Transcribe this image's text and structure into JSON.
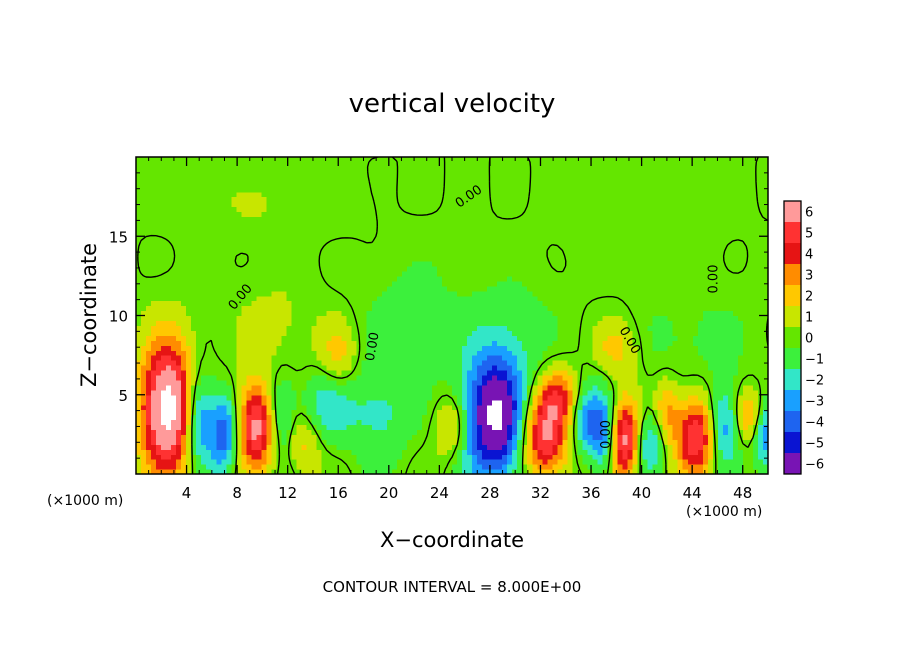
{
  "chart_data": {
    "type": "heatmap",
    "title": "vertical velocity",
    "xlabel": "X−coordinate",
    "ylabel": "Z−coordinate",
    "x_unit_left": "(×1000 m)",
    "x_unit_right": "(×1000 m)",
    "footer": "CONTOUR INTERVAL = 8.000E+00",
    "xlim": [
      0,
      50
    ],
    "ylim": [
      0,
      20
    ],
    "x_ticks": [
      4,
      8,
      12,
      16,
      20,
      24,
      28,
      32,
      36,
      40,
      44,
      48
    ],
    "x_tick_labels": [
      "4",
      "8",
      "12",
      "16",
      "20",
      "24",
      "28",
      "32",
      "36",
      "40",
      "44",
      "48"
    ],
    "y_ticks": [
      5,
      10,
      15
    ],
    "y_tick_labels": [
      "5",
      "10",
      "15"
    ],
    "contour_labels": [
      {
        "text": "0.00",
        "x": 8.5,
        "y": 11,
        "angle": -50
      },
      {
        "text": "0.00",
        "x": 19,
        "y": 8,
        "angle": -80
      },
      {
        "text": "0.00",
        "x": 26.5,
        "y": 17.3,
        "angle": -35
      },
      {
        "text": "0.00",
        "x": 38.8,
        "y": 8.3,
        "angle": 60
      },
      {
        "text": "0.00",
        "x": 46,
        "y": 12.3,
        "angle": -90
      },
      {
        "text": "0.00",
        "x": 37.5,
        "y": 2.5,
        "angle": -90
      }
    ],
    "colorbar": {
      "levels": [
        6,
        5,
        4,
        3,
        2,
        1,
        0,
        -1,
        -2,
        -3,
        -4,
        -5,
        -6
      ],
      "labels": [
        "6",
        "5",
        "4",
        "3",
        "2",
        "1",
        "0",
        "−1",
        "−2",
        "−3",
        "−4",
        "−5",
        "−6"
      ],
      "colors": [
        "#ff9a9a",
        "#ff3232",
        "#e61414",
        "#ff8c00",
        "#ffc800",
        "#c8e600",
        "#64e600",
        "#3cf03c",
        "#32e6c8",
        "#19a0ff",
        "#1e64f0",
        "#0a14d2",
        "#7814b4"
      ]
    },
    "features": [
      {
        "x": 2.5,
        "y": 4.2,
        "sx": 1.5,
        "sy": 2.9,
        "v": 8.2
      },
      {
        "x": 9.5,
        "y": 3.0,
        "sx": 1.2,
        "sy": 1.9,
        "v": 6.2
      },
      {
        "x": 4.9,
        "y": 3.6,
        "sx": 0.8,
        "sy": 2.1,
        "v": -4.2
      },
      {
        "x": 7.0,
        "y": 2.6,
        "sx": 0.9,
        "sy": 1.8,
        "v": -4.6
      },
      {
        "x": 11.4,
        "y": 3.6,
        "sx": 0.8,
        "sy": 1.9,
        "v": -3.0
      },
      {
        "x": 13.3,
        "y": 2.0,
        "sx": 1.0,
        "sy": 1.4,
        "v": 2.0
      },
      {
        "x": 15.0,
        "y": 4.3,
        "sx": 1.4,
        "sy": 1.6,
        "v": -2.2
      },
      {
        "x": 16.0,
        "y": 7.5,
        "sx": 1.0,
        "sy": 1.5,
        "v": 2.0
      },
      {
        "x": 19.2,
        "y": 3.8,
        "sx": 1.8,
        "sy": 2.0,
        "v": -1.8
      },
      {
        "x": 25.0,
        "y": 3.0,
        "sx": 1.0,
        "sy": 1.4,
        "v": 2.2
      },
      {
        "x": 28.4,
        "y": 3.6,
        "sx": 1.7,
        "sy": 2.8,
        "v": -7.6
      },
      {
        "x": 32.3,
        "y": 2.4,
        "sx": 1.3,
        "sy": 1.9,
        "v": 6.0
      },
      {
        "x": 33.6,
        "y": 5.0,
        "sx": 1.2,
        "sy": 1.2,
        "v": 3.2
      },
      {
        "x": 35.5,
        "y": 3.6,
        "sx": 0.8,
        "sy": 1.6,
        "v": -3.2
      },
      {
        "x": 37.1,
        "y": 2.6,
        "sx": 0.8,
        "sy": 1.8,
        "v": -4.2
      },
      {
        "x": 38.6,
        "y": 2.2,
        "sx": 0.9,
        "sy": 1.8,
        "v": 6.4
      },
      {
        "x": 40.6,
        "y": 2.0,
        "sx": 0.8,
        "sy": 1.4,
        "v": -3.0
      },
      {
        "x": 42.0,
        "y": 4.0,
        "sx": 0.7,
        "sy": 1.4,
        "v": 2.6
      },
      {
        "x": 44.3,
        "y": 2.4,
        "sx": 1.1,
        "sy": 1.8,
        "v": 5.6
      },
      {
        "x": 46.5,
        "y": 3.0,
        "sx": 0.9,
        "sy": 1.8,
        "v": -3.4
      },
      {
        "x": 48.5,
        "y": 3.6,
        "sx": 0.8,
        "sy": 1.2,
        "v": 2.8
      },
      {
        "x": 49.8,
        "y": 2.4,
        "sx": 0.7,
        "sy": 1.4,
        "v": -3.6
      },
      {
        "x": 22.0,
        "y": 9.5,
        "sx": 3.0,
        "sy": 3.0,
        "v": -0.9
      },
      {
        "x": 30.0,
        "y": 9.0,
        "sx": 2.5,
        "sy": 2.5,
        "v": -0.8
      },
      {
        "x": 38.0,
        "y": 8.0,
        "sx": 1.2,
        "sy": 1.3,
        "v": 2.0
      },
      {
        "x": 44.0,
        "y": 8.5,
        "sx": 3.5,
        "sy": 2.5,
        "v": -0.7
      },
      {
        "x": 11.0,
        "y": 9.0,
        "sx": 2.5,
        "sy": 2.5,
        "v": 0.8
      },
      {
        "x": 10.0,
        "y": 17.0,
        "sx": 5.0,
        "sy": 1.5,
        "v": 0.5
      },
      {
        "x": 40.0,
        "y": 16.0,
        "sx": 4.0,
        "sy": 2.0,
        "v": -0.4
      }
    ]
  }
}
